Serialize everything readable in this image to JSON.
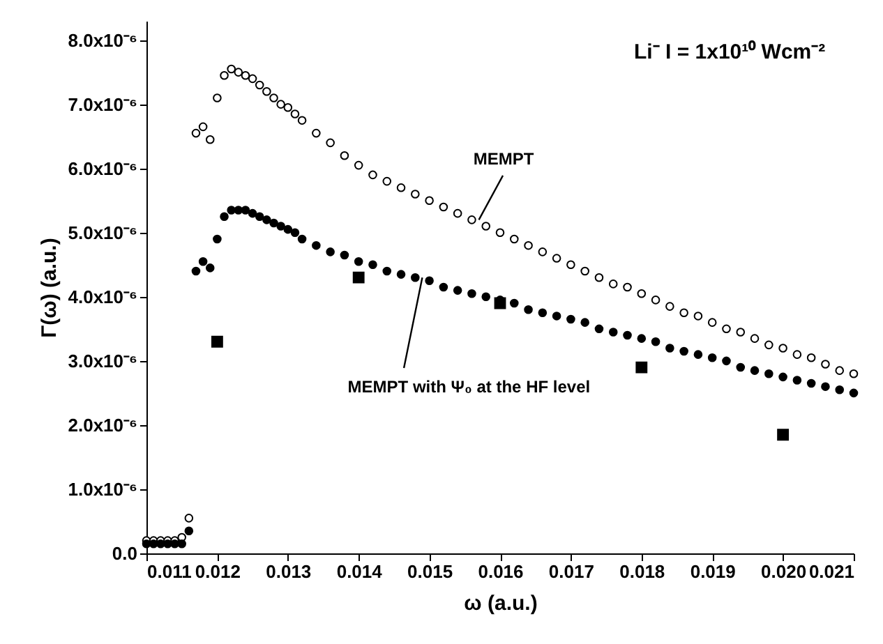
{
  "chart_data": {
    "type": "scatter",
    "title": "Li⁻ I = 1x10¹⁰ Wcm⁻²",
    "xlabel": "ω (a.u.)",
    "ylabel": "Γ(ω) (a.u.)",
    "xlim": [
      0.011,
      0.021
    ],
    "xticks": [
      {
        "value": 0.011,
        "label": "0.011"
      },
      {
        "value": 0.012,
        "label": "0.012"
      },
      {
        "value": 0.013,
        "label": "0.013"
      },
      {
        "value": 0.014,
        "label": "0.014"
      },
      {
        "value": 0.015,
        "label": "0.015"
      },
      {
        "value": 0.016,
        "label": "0.016"
      },
      {
        "value": 0.017,
        "label": "0.017"
      },
      {
        "value": 0.018,
        "label": "0.018"
      },
      {
        "value": 0.019,
        "label": "0.019"
      },
      {
        "value": 0.02,
        "label": "0.020"
      },
      {
        "value": 0.021,
        "label": "0.021"
      }
    ],
    "ylim": [
      0,
      8.3e-06
    ],
    "yticks": [
      {
        "value": 0,
        "label": "0.0"
      },
      {
        "value": 1e-06,
        "label": "1.0x10⁻⁶"
      },
      {
        "value": 2e-06,
        "label": "2.0x10⁻⁶"
      },
      {
        "value": 3e-06,
        "label": "3.0x10⁻⁶"
      },
      {
        "value": 4e-06,
        "label": "4.0x10⁻⁶"
      },
      {
        "value": 5e-06,
        "label": "5.0x10⁻⁶"
      },
      {
        "value": 6e-06,
        "label": "6.0x10⁻⁶"
      },
      {
        "value": 7e-06,
        "label": "7.0x10⁻⁶"
      },
      {
        "value": 8e-06,
        "label": "8.0x10⁻⁶"
      }
    ],
    "grid": false,
    "series": [
      {
        "marker": "circle",
        "color": "#ffffff",
        "x": [
          0.011,
          0.0111,
          0.0112,
          0.0113,
          0.0114,
          0.0115,
          0.0116,
          0.0117,
          0.0118,
          0.0119,
          0.012,
          0.0121,
          0.0122,
          0.0123,
          0.0124,
          0.0125,
          0.0126,
          0.0127,
          0.0128,
          0.0129,
          0.013,
          0.0131,
          0.0132,
          0.0134,
          0.0136,
          0.0138,
          0.014,
          0.0142,
          0.0144,
          0.0146,
          0.0148,
          0.015,
          0.0152,
          0.0154,
          0.0156,
          0.0158,
          0.016,
          0.0162,
          0.0164,
          0.0166,
          0.0168,
          0.017,
          0.0172,
          0.0174,
          0.0176,
          0.0178,
          0.018,
          0.0182,
          0.0184,
          0.0186,
          0.0188,
          0.019,
          0.0192,
          0.0194,
          0.0196,
          0.0198,
          0.02,
          0.0202,
          0.0204,
          0.0206,
          0.0208,
          0.021
        ],
        "values": [
          2e-07,
          2e-07,
          2e-07,
          2e-07,
          2e-07,
          2.5e-07,
          5.5e-07,
          6.55e-06,
          6.65e-06,
          6.45e-06,
          7.1e-06,
          7.45e-06,
          7.55e-06,
          7.5e-06,
          7.45e-06,
          7.4e-06,
          7.3e-06,
          7.2e-06,
          7.1e-06,
          7e-06,
          6.95e-06,
          6.85e-06,
          6.75e-06,
          6.55e-06,
          6.4e-06,
          6.2e-06,
          6.05e-06,
          5.9e-06,
          5.8e-06,
          5.7e-06,
          5.6e-06,
          5.5e-06,
          5.4e-06,
          5.3e-06,
          5.2e-06,
          5.1e-06,
          5e-06,
          4.9e-06,
          4.8e-06,
          4.7e-06,
          4.6e-06,
          4.5e-06,
          4.4e-06,
          4.3e-06,
          4.2e-06,
          4.15e-06,
          4.05e-06,
          3.95e-06,
          3.85e-06,
          3.75e-06,
          3.7e-06,
          3.6e-06,
          3.5e-06,
          3.45e-06,
          3.35e-06,
          3.25e-06,
          3.2e-06,
          3.1e-06,
          3.05e-06,
          2.95e-06,
          2.85e-06,
          2.8e-06
        ]
      },
      {
        "marker": "circle",
        "color": "#000000",
        "x": [
          0.011,
          0.0111,
          0.0112,
          0.0113,
          0.0114,
          0.0115,
          0.0116,
          0.0117,
          0.0118,
          0.0119,
          0.012,
          0.0121,
          0.0122,
          0.0123,
          0.0124,
          0.0125,
          0.0126,
          0.0127,
          0.0128,
          0.0129,
          0.013,
          0.0131,
          0.0132,
          0.0134,
          0.0136,
          0.0138,
          0.014,
          0.0142,
          0.0144,
          0.0146,
          0.0148,
          0.015,
          0.0152,
          0.0154,
          0.0156,
          0.0158,
          0.016,
          0.0162,
          0.0164,
          0.0166,
          0.0168,
          0.017,
          0.0172,
          0.0174,
          0.0176,
          0.0178,
          0.018,
          0.0182,
          0.0184,
          0.0186,
          0.0188,
          0.019,
          0.0192,
          0.0194,
          0.0196,
          0.0198,
          0.02,
          0.0202,
          0.0204,
          0.0206,
          0.0208,
          0.021
        ],
        "values": [
          1.5e-07,
          1.5e-07,
          1.5e-07,
          1.5e-07,
          1.5e-07,
          1.5e-07,
          3.5e-07,
          4.4e-06,
          4.55e-06,
          4.45e-06,
          4.9e-06,
          5.25e-06,
          5.35e-06,
          5.35e-06,
          5.35e-06,
          5.3e-06,
          5.25e-06,
          5.2e-06,
          5.15e-06,
          5.1e-06,
          5.05e-06,
          5e-06,
          4.9e-06,
          4.8e-06,
          4.7e-06,
          4.65e-06,
          4.55e-06,
          4.5e-06,
          4.4e-06,
          4.35e-06,
          4.3e-06,
          4.25e-06,
          4.15e-06,
          4.1e-06,
          4.05e-06,
          4e-06,
          3.95e-06,
          3.9e-06,
          3.8e-06,
          3.75e-06,
          3.7e-06,
          3.65e-06,
          3.6e-06,
          3.5e-06,
          3.45e-06,
          3.4e-06,
          3.35e-06,
          3.3e-06,
          3.2e-06,
          3.15e-06,
          3.1e-06,
          3.05e-06,
          3e-06,
          2.9e-06,
          2.85e-06,
          2.8e-06,
          2.75e-06,
          2.7e-06,
          2.65e-06,
          2.6e-06,
          2.55e-06,
          2.5e-06
        ]
      },
      {
        "marker": "square",
        "color": "#000000",
        "x": [
          0.012,
          0.014,
          0.016,
          0.018,
          0.02
        ],
        "values": [
          3.3e-06,
          4.3e-06,
          3.9e-06,
          2.9e-06,
          1.85e-06
        ]
      }
    ],
    "annotations": [
      {
        "text": "MEMPT",
        "x": 0.0157,
        "y": 5.2e-06
      },
      {
        "text": "MEMPT with Ψ₀ at the HF level",
        "x": 0.0149,
        "y": 4.3e-06
      }
    ]
  }
}
